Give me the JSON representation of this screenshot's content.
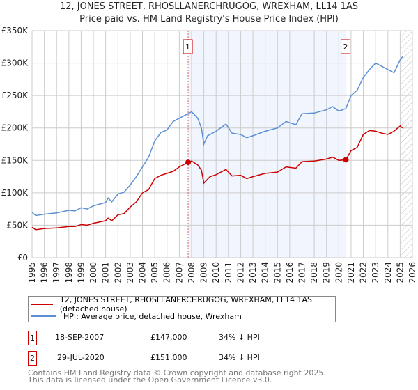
{
  "title": "12, JONES STREET, RHOSLLANERCHRUGOG, WREXHAM, LL14 1AS",
  "subtitle": "Price paid vs. HM Land Registry's House Price Index (HPI)",
  "chart_data": {
    "type": "line",
    "title": "12, JONES STREET, RHOSLLANERCHRUGOG, WREXHAM, LL14 1AS",
    "subtitle": "Price paid vs. HM Land Registry's House Price Index (HPI)",
    "xlim": [
      1995,
      2026
    ],
    "ylim": [
      0,
      350000
    ],
    "x_ticks": [
      "1995",
      "1996",
      "1997",
      "1998",
      "1999",
      "2000",
      "2001",
      "2002",
      "2003",
      "2004",
      "2005",
      "2006",
      "2007",
      "2008",
      "2009",
      "2010",
      "2011",
      "2012",
      "2013",
      "2014",
      "2015",
      "2016",
      "2017",
      "2018",
      "2019",
      "2020",
      "2021",
      "2022",
      "2023",
      "2024",
      "2025",
      "2026"
    ],
    "y_ticks": [
      {
        "v": 0,
        "label": "£0"
      },
      {
        "v": 50000,
        "label": "£50K"
      },
      {
        "v": 100000,
        "label": "£100K"
      },
      {
        "v": 150000,
        "label": "£150K"
      },
      {
        "v": 200000,
        "label": "£200K"
      },
      {
        "v": 250000,
        "label": "£250K"
      },
      {
        "v": 300000,
        "label": "£300K"
      },
      {
        "v": 350000,
        "label": "£350K"
      }
    ],
    "grid": true,
    "shaded_range": [
      2007.72,
      2020.58
    ],
    "hatched_from": 2025.1,
    "series": [
      {
        "name": "12, JONES STREET, RHOSLLANERCHRUGOG, WREXHAM, LL14 1AS (detached house)",
        "color": "#cc0000",
        "x": [
          1995,
          1995.3,
          1996,
          1997,
          1998,
          1998.5,
          1999,
          1999.5,
          2000,
          2001,
          2001.2,
          2001.5,
          2002,
          2002.5,
          2003,
          2003.5,
          2004,
          2004.5,
          2005,
          2005.5,
          2006,
          2006.5,
          2007,
          2007.72,
          2008,
          2008.5,
          2008.8,
          2009,
          2009.5,
          2010,
          2010.8,
          2011.3,
          2012,
          2012.5,
          2013,
          2014,
          2015,
          2015.7,
          2016.5,
          2017,
          2018,
          2019,
          2019.5,
          2020,
          2020.58,
          2021,
          2021.5,
          2022,
          2022.5,
          2023,
          2023.5,
          2024,
          2024.5,
          2025,
          2025.2
        ],
        "y": [
          47000,
          43000,
          45000,
          46000,
          48000,
          48000,
          51000,
          50000,
          53000,
          57000,
          61000,
          57000,
          66000,
          68000,
          78000,
          86000,
          100000,
          105000,
          122000,
          127000,
          130000,
          133000,
          140000,
          147000,
          149000,
          143000,
          135000,
          115000,
          125000,
          128000,
          136000,
          126000,
          127000,
          122000,
          125000,
          130000,
          132000,
          140000,
          138000,
          148000,
          149000,
          152000,
          155000,
          150000,
          151000,
          165000,
          170000,
          190000,
          196000,
          195000,
          192000,
          190000,
          195000,
          203000,
          200000
        ]
      },
      {
        "name": "HPI: Average price, detached house, Wrexham",
        "color": "#5b8fd4",
        "x": [
          1995,
          1995.3,
          1996,
          1997,
          1998,
          1998.5,
          1999,
          1999.5,
          2000,
          2001,
          2001.2,
          2001.5,
          2002,
          2002.5,
          2003,
          2003.5,
          2004,
          2004.5,
          2005,
          2005.5,
          2006,
          2006.5,
          2007,
          2007.72,
          2008,
          2008.5,
          2008.8,
          2009,
          2009.3,
          2010,
          2010.8,
          2011.3,
          2012,
          2012.5,
          2013,
          2014,
          2015,
          2015.7,
          2016.5,
          2017,
          2018,
          2019,
          2019.5,
          2020,
          2020.58,
          2021,
          2021.5,
          2022,
          2022.5,
          2023,
          2023.5,
          2024,
          2024.5,
          2025,
          2025.2
        ],
        "y": [
          70000,
          65000,
          67000,
          69000,
          73000,
          72000,
          77000,
          75000,
          80000,
          85000,
          92000,
          86000,
          98000,
          101000,
          112000,
          125000,
          140000,
          155000,
          180000,
          193000,
          197000,
          210000,
          215000,
          222000,
          225000,
          215000,
          200000,
          175000,
          188000,
          195000,
          206000,
          192000,
          190000,
          185000,
          188000,
          195000,
          200000,
          210000,
          205000,
          222000,
          223000,
          228000,
          233000,
          226000,
          230000,
          250000,
          258000,
          278000,
          290000,
          300000,
          295000,
          290000,
          285000,
          305000,
          310000
        ]
      }
    ],
    "annotations": [
      {
        "label": "1",
        "x": 2007.72,
        "y": 147000
      },
      {
        "label": "2",
        "x": 2020.58,
        "y": 151000
      }
    ]
  },
  "legend": {
    "red": "12, JONES STREET, RHOSLLANERCHRUGOG, WREXHAM, LL14 1AS (detached house)",
    "blue": "HPI: Average price, detached house, Wrexham"
  },
  "sales": [
    {
      "num": "1",
      "date": "18-SEP-2007",
      "price": "£147,000",
      "hpi": "34% ↓ HPI"
    },
    {
      "num": "2",
      "date": "29-JUL-2020",
      "price": "£151,000",
      "hpi": "34% ↓ HPI"
    }
  ],
  "footer": {
    "line1": "Contains HM Land Registry data © Crown copyright and database right 2025.",
    "line2": "This data is licensed under the Open Government Licence v3.0."
  }
}
